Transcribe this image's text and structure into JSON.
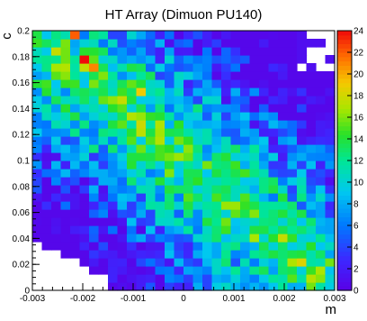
{
  "chart_data": {
    "type": "heatmap",
    "title": "HT Array (Dimuon PU140)",
    "xlabel": "m",
    "ylabel": "c",
    "xlim": [
      -0.003,
      0.003
    ],
    "ylim": [
      0,
      0.2
    ],
    "x_ticks": [
      "-0.003",
      "-0.002",
      "-0.001",
      "0",
      "0.001",
      "0.002",
      "0.003"
    ],
    "y_ticks": [
      "0",
      "0.02",
      "0.04",
      "0.06",
      "0.08",
      "0.1",
      "0.12",
      "0.14",
      "0.16",
      "0.18",
      "0.2"
    ],
    "z_range": [
      0,
      24
    ],
    "colorbar_ticks": [
      "0",
      "2",
      "4",
      "6",
      "8",
      "10",
      "12",
      "14",
      "16",
      "18",
      "20",
      "22",
      "24"
    ],
    "grid": false,
    "nx": 32,
    "ny": 32,
    "values_note": "",
    "values": []
  }
}
